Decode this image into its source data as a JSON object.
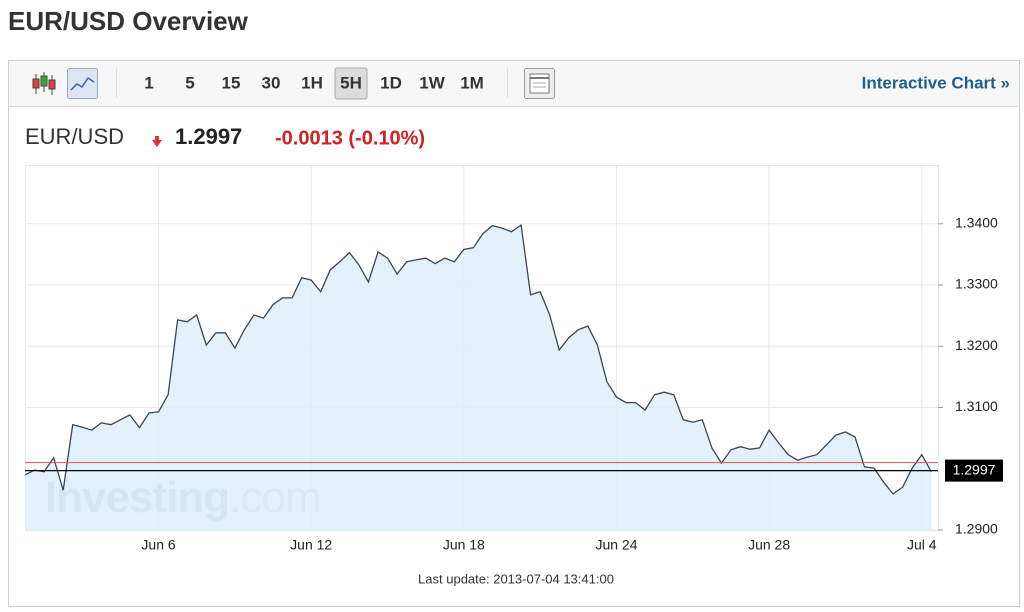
{
  "page_title": "EUR/USD Overview",
  "toolbar": {
    "intervals": [
      "1",
      "5",
      "15",
      "30",
      "1H",
      "5H",
      "1D",
      "1W",
      "1M"
    ],
    "active_index": 5,
    "link": "Interactive Chart »"
  },
  "header": {
    "symbol": "EUR/USD",
    "price": "1.2997",
    "change": "-0.0013 (-0.10%)"
  },
  "footer": "Last update: 2013-07-04 13:41:00",
  "chart_data": {
    "type": "area",
    "watermark": [
      "Investing",
      ".com"
    ],
    "categories": [
      null,
      null,
      null,
      null,
      null,
      null,
      null,
      null,
      null,
      null,
      null,
      null,
      null,
      null,
      "Jun 6",
      null,
      null,
      null,
      null,
      null,
      null,
      null,
      null,
      null,
      null,
      null,
      null,
      null,
      null,
      null,
      "Jun 12",
      null,
      null,
      null,
      null,
      null,
      null,
      null,
      null,
      null,
      null,
      null,
      null,
      null,
      null,
      null,
      "Jun 18",
      null,
      null,
      null,
      null,
      null,
      null,
      null,
      null,
      null,
      null,
      null,
      null,
      null,
      null,
      null,
      "Jun 24",
      null,
      null,
      null,
      null,
      null,
      null,
      null,
      null,
      null,
      null,
      null,
      null,
      null,
      null,
      null,
      "Jun 28",
      null,
      null,
      null,
      null,
      null,
      null,
      null,
      null,
      null,
      null,
      null,
      null,
      null,
      null,
      null,
      "Jul 4",
      null
    ],
    "values": [
      1.299,
      1.2998,
      1.2995,
      1.3018,
      1.2965,
      1.3072,
      1.3068,
      1.3063,
      1.3075,
      1.3072,
      1.308,
      1.3088,
      1.3067,
      1.3091,
      1.3093,
      1.3121,
      1.3243,
      1.324,
      1.3251,
      1.3202,
      1.3222,
      1.3222,
      1.3197,
      1.3227,
      1.3251,
      1.3246,
      1.3268,
      1.3279,
      1.3279,
      1.3312,
      1.3308,
      1.3289,
      1.3325,
      1.3338,
      1.3353,
      1.3333,
      1.3305,
      1.3354,
      1.3344,
      1.3318,
      1.3338,
      1.3341,
      1.3344,
      1.3335,
      1.3344,
      1.3338,
      1.3358,
      1.3361,
      1.3384,
      1.3397,
      1.3393,
      1.3387,
      1.3398,
      1.3284,
      1.3289,
      1.3251,
      1.3194,
      1.3214,
      1.3227,
      1.3233,
      1.3202,
      1.3142,
      1.3117,
      1.3108,
      1.3108,
      1.3096,
      1.3121,
      1.3125,
      1.3121,
      1.308,
      1.3076,
      1.308,
      1.3034,
      1.3009,
      1.3031,
      1.3036,
      1.3032,
      1.3034,
      1.3063,
      1.3042,
      1.3023,
      1.3014,
      1.3019,
      1.3023,
      1.3039,
      1.3055,
      1.306,
      1.3052,
      1.3003,
      1.3001,
      1.2978,
      1.2959,
      1.297,
      1.3001,
      1.3023,
      1.2995
    ],
    "color": "#3a4556",
    "fill": "#dcedfa",
    "ylim": [
      1.29,
      1.3496
    ],
    "yticks": [
      {
        "value": 1.29,
        "label": "1.2900"
      },
      {
        "value": 1.31,
        "label": "1.3100"
      },
      {
        "value": 1.32,
        "label": "1.3200"
      },
      {
        "value": 1.33,
        "label": "1.3300"
      },
      {
        "value": 1.34,
        "label": "1.3400"
      }
    ],
    "grid": true,
    "current_line": {
      "value": 1.2997,
      "label": "1.2997"
    },
    "previous_close_line": {
      "value": 1.301,
      "color": "#d9534f"
    }
  }
}
